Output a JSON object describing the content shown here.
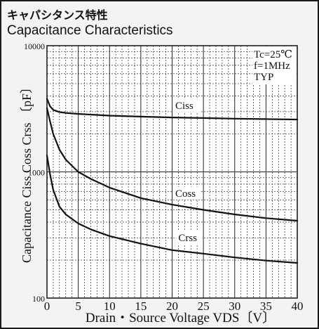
{
  "header": {
    "title_jp": "キャパシタンス特性",
    "title_en": "Capacitance Characteristics"
  },
  "chart_data": {
    "type": "line",
    "title": "Capacitance Characteristics",
    "subtitle": "キャパシタンス特性",
    "xlabel": "Drain・Source Voltage VDS〔V〕",
    "ylabel": "Capacitance  Ciss Coss Crss 〔pF〕",
    "xlim": [
      0,
      40
    ],
    "ylim": [
      100,
      10000
    ],
    "y_scale": "log",
    "grid": true,
    "x_ticks": [
      "0",
      "5",
      "10",
      "15",
      "20",
      "25",
      "30",
      "35",
      "40"
    ],
    "y_ticks": [
      "100",
      "1000",
      "10000"
    ],
    "annotations": [
      "Tc=25℃",
      "f=1MHz",
      "TYP"
    ],
    "series": [
      {
        "name": "Ciss",
        "x": [
          0,
          0.5,
          1,
          2,
          3,
          5,
          10,
          15,
          20,
          25,
          30,
          35,
          40
        ],
        "values": [
          3800,
          3300,
          3100,
          2980,
          2930,
          2880,
          2790,
          2740,
          2700,
          2670,
          2640,
          2620,
          2600
        ]
      },
      {
        "name": "Coss",
        "x": [
          0,
          0.5,
          1,
          2,
          3,
          5,
          7,
          10,
          15,
          20,
          25,
          30,
          35,
          40
        ],
        "values": [
          3200,
          2500,
          2000,
          1500,
          1250,
          1000,
          880,
          750,
          620,
          550,
          500,
          460,
          430,
          410
        ]
      },
      {
        "name": "Crss",
        "x": [
          0,
          0.5,
          1,
          2,
          3,
          5,
          7,
          10,
          15,
          20,
          25,
          30,
          35,
          40
        ],
        "values": [
          1350,
          950,
          720,
          530,
          460,
          390,
          350,
          310,
          270,
          240,
          225,
          210,
          198,
          190
        ]
      }
    ],
    "colors": {
      "line": "#111111",
      "grid_major": "#222222",
      "grid_minor": "#444444",
      "plot_bg": "#ffffff",
      "frame_bg": "#f3f3f3"
    }
  }
}
